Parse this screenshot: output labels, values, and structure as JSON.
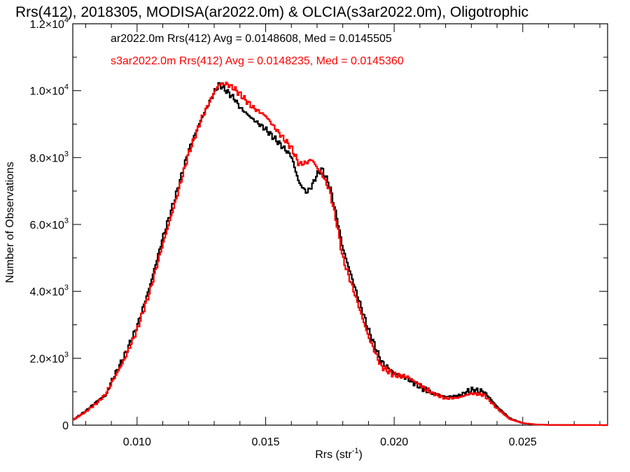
{
  "chart_data": {
    "type": "line",
    "title": "Rrs(412), 2018305, MODISA(ar2022.0m) & OLCIA(s3ar2022.0m), Oligotrophic",
    "xlabel": "Rrs (str",
    "xlabel_sup": "-1",
    "xlabel_tail": ")",
    "ylabel": "Number of Observations",
    "xlim": [
      0.0075,
      0.0283
    ],
    "ylim": [
      0,
      12000
    ],
    "x_ticks": [
      {
        "value": 0.01,
        "label": "0.010"
      },
      {
        "value": 0.015,
        "label": "0.015"
      },
      {
        "value": 0.02,
        "label": "0.020"
      },
      {
        "value": 0.025,
        "label": "0.025"
      }
    ],
    "y_ticks": [
      {
        "value": 0,
        "mant": "0",
        "exp": ""
      },
      {
        "value": 2000,
        "mant": "2.0×10",
        "exp": "3"
      },
      {
        "value": 4000,
        "mant": "4.0×10",
        "exp": "3"
      },
      {
        "value": 6000,
        "mant": "6.0×10",
        "exp": "3"
      },
      {
        "value": 8000,
        "mant": "8.0×10",
        "exp": "3"
      },
      {
        "value": 10000,
        "mant": "1.0×10",
        "exp": "4"
      },
      {
        "value": 12000,
        "mant": "1.2×10",
        "exp": "4"
      }
    ],
    "grid": false,
    "legend": "top-left",
    "series": [
      {
        "label": "ar2022.0m Rrs(412) Avg = 0.0148608, Med = 0.0145505",
        "color": "#000000",
        "points": [
          [
            0.0075,
            150
          ],
          [
            0.008,
            420
          ],
          [
            0.0085,
            750
          ],
          [
            0.0088,
            900
          ],
          [
            0.009,
            1300
          ],
          [
            0.0095,
            2050
          ],
          [
            0.01,
            2950
          ],
          [
            0.0105,
            4150
          ],
          [
            0.011,
            5600
          ],
          [
            0.0115,
            6850
          ],
          [
            0.012,
            8200
          ],
          [
            0.0125,
            9150
          ],
          [
            0.013,
            9950
          ],
          [
            0.0132,
            10200
          ],
          [
            0.0134,
            10050
          ],
          [
            0.0138,
            9750
          ],
          [
            0.014,
            9500
          ],
          [
            0.0145,
            9150
          ],
          [
            0.015,
            8850
          ],
          [
            0.0155,
            8450
          ],
          [
            0.016,
            8050
          ],
          [
            0.0163,
            7250
          ],
          [
            0.0166,
            6950
          ],
          [
            0.0168,
            7150
          ],
          [
            0.017,
            7500
          ],
          [
            0.0172,
            7650
          ],
          [
            0.0175,
            7150
          ],
          [
            0.0178,
            6100
          ],
          [
            0.018,
            5300
          ],
          [
            0.0185,
            4050
          ],
          [
            0.019,
            2850
          ],
          [
            0.0195,
            1900
          ],
          [
            0.02,
            1550
          ],
          [
            0.0205,
            1400
          ],
          [
            0.021,
            1150
          ],
          [
            0.0215,
            950
          ],
          [
            0.022,
            850
          ],
          [
            0.0225,
            880
          ],
          [
            0.023,
            1050
          ],
          [
            0.0235,
            1000
          ],
          [
            0.024,
            550
          ],
          [
            0.0245,
            200
          ],
          [
            0.025,
            60
          ],
          [
            0.0255,
            20
          ],
          [
            0.026,
            8
          ],
          [
            0.0283,
            0
          ]
        ]
      },
      {
        "label": "s3ar2022.0m Rrs(412) Avg = 0.0148235, Med = 0.0145360",
        "color": "#ff0000",
        "points": [
          [
            0.0075,
            150
          ],
          [
            0.008,
            400
          ],
          [
            0.0085,
            700
          ],
          [
            0.0088,
            950
          ],
          [
            0.009,
            1250
          ],
          [
            0.0095,
            1950
          ],
          [
            0.01,
            2850
          ],
          [
            0.0105,
            4000
          ],
          [
            0.011,
            5400
          ],
          [
            0.0115,
            6700
          ],
          [
            0.012,
            8100
          ],
          [
            0.0125,
            9150
          ],
          [
            0.013,
            9950
          ],
          [
            0.0132,
            10200
          ],
          [
            0.0135,
            10200
          ],
          [
            0.0138,
            10050
          ],
          [
            0.014,
            9900
          ],
          [
            0.0145,
            9500
          ],
          [
            0.015,
            9250
          ],
          [
            0.0155,
            8750
          ],
          [
            0.016,
            8300
          ],
          [
            0.0163,
            7800
          ],
          [
            0.0166,
            7850
          ],
          [
            0.0168,
            7950
          ],
          [
            0.017,
            7700
          ],
          [
            0.0172,
            7500
          ],
          [
            0.0175,
            7000
          ],
          [
            0.0178,
            5900
          ],
          [
            0.018,
            5000
          ],
          [
            0.0185,
            3850
          ],
          [
            0.019,
            2650
          ],
          [
            0.0195,
            1750
          ],
          [
            0.02,
            1500
          ],
          [
            0.0205,
            1450
          ],
          [
            0.021,
            1200
          ],
          [
            0.0215,
            950
          ],
          [
            0.022,
            800
          ],
          [
            0.0225,
            820
          ],
          [
            0.023,
            950
          ],
          [
            0.0235,
            900
          ],
          [
            0.024,
            500
          ],
          [
            0.0245,
            180
          ],
          [
            0.025,
            60
          ],
          [
            0.0255,
            20
          ],
          [
            0.026,
            8
          ],
          [
            0.0283,
            0
          ]
        ]
      }
    ]
  }
}
